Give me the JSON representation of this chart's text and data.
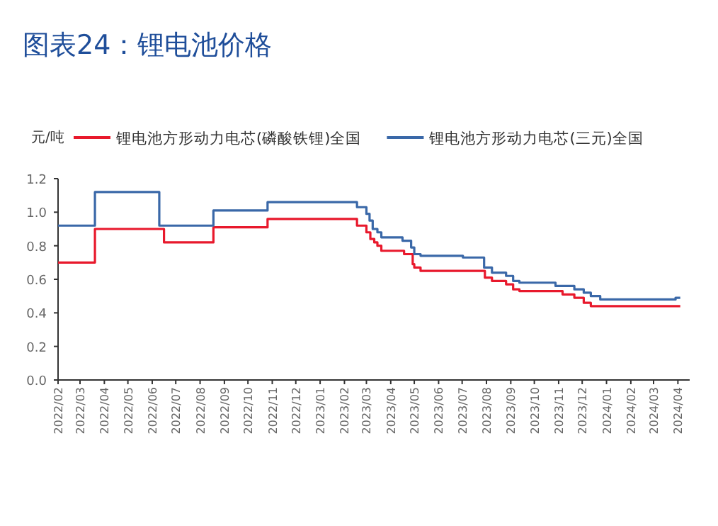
{
  "chart_data": {
    "type": "step",
    "title": "图表24：锂电池价格",
    "ylabel": "元/吨",
    "legend": "top",
    "grid": false,
    "line_style": "solid",
    "marker": "none",
    "xlim": [
      "2022-02-01",
      "2024-04-16"
    ],
    "xticks": [
      {
        "value": "2022-02-01",
        "label": "2022/02"
      },
      {
        "value": "2022-03-01",
        "label": "2022/03"
      },
      {
        "value": "2022-04-01",
        "label": "2022/04"
      },
      {
        "value": "2022-05-01",
        "label": "2022/05"
      },
      {
        "value": "2022-06-01",
        "label": "2022/06"
      },
      {
        "value": "2022-07-01",
        "label": "2022/07"
      },
      {
        "value": "2022-08-01",
        "label": "2022/08"
      },
      {
        "value": "2022-09-01",
        "label": "2022/09"
      },
      {
        "value": "2022-10-01",
        "label": "2022/10"
      },
      {
        "value": "2022-11-01",
        "label": "2022/11"
      },
      {
        "value": "2022-12-01",
        "label": "2022/12"
      },
      {
        "value": "2023-01-01",
        "label": "2023/01"
      },
      {
        "value": "2023-02-01",
        "label": "2023/02"
      },
      {
        "value": "2023-03-01",
        "label": "2023/03"
      },
      {
        "value": "2023-04-01",
        "label": "2023/04"
      },
      {
        "value": "2023-05-01",
        "label": "2023/05"
      },
      {
        "value": "2023-06-01",
        "label": "2023/06"
      },
      {
        "value": "2023-07-01",
        "label": "2023/07"
      },
      {
        "value": "2023-08-01",
        "label": "2023/08"
      },
      {
        "value": "2023-09-01",
        "label": "2023/09"
      },
      {
        "value": "2023-10-01",
        "label": "2023/10"
      },
      {
        "value": "2023-11-01",
        "label": "2023/11"
      },
      {
        "value": "2023-12-01",
        "label": "2023/12"
      },
      {
        "value": "2024-01-01",
        "label": "2024/01"
      },
      {
        "value": "2024-02-01",
        "label": "2024/02"
      },
      {
        "value": "2024-03-01",
        "label": "2024/03"
      },
      {
        "value": "2024-04-01",
        "label": "2024/04"
      }
    ],
    "ylim": [
      0,
      1.2
    ],
    "yticks": [
      {
        "value": 0,
        "label": "0.0"
      },
      {
        "value": 0.2,
        "label": "0.2"
      },
      {
        "value": 0.4,
        "label": "0.4"
      },
      {
        "value": 0.6,
        "label": "0.6"
      },
      {
        "value": 0.8,
        "label": "0.8"
      },
      {
        "value": 1,
        "label": "1.0"
      },
      {
        "value": 1.2,
        "label": "1.2"
      }
    ],
    "series": [
      {
        "name": "锂电池方形动力电芯(磷酸铁锂)全国",
        "color": "#e8192c",
        "x": [
          "2022-02-01",
          "2022-03-20",
          "2022-06-16",
          "2022-08-18",
          "2022-10-26",
          "2023-02-17",
          "2023-03-01",
          "2023-03-06",
          "2023-03-11",
          "2023-03-15",
          "2023-03-20",
          "2023-04-18",
          "2023-04-29",
          "2023-05-01",
          "2023-05-09",
          "2023-07-30",
          "2023-08-08",
          "2023-08-26",
          "2023-09-04",
          "2023-09-12",
          "2023-11-06",
          "2023-11-21",
          "2023-12-03",
          "2023-12-12",
          "2024-04-04"
        ],
        "values": [
          0.7,
          0.9,
          0.82,
          0.91,
          0.96,
          0.92,
          0.88,
          0.84,
          0.82,
          0.8,
          0.77,
          0.75,
          0.69,
          0.67,
          0.65,
          0.61,
          0.59,
          0.57,
          0.54,
          0.53,
          0.51,
          0.49,
          0.46,
          0.44,
          0.44
        ]
      },
      {
        "name": "锂电池方形动力电芯(三元)全国",
        "color": "#3a68a8",
        "x": [
          "2022-02-01",
          "2022-03-20",
          "2022-06-10",
          "2022-08-18",
          "2022-10-26",
          "2023-02-17",
          "2023-03-01",
          "2023-03-05",
          "2023-03-09",
          "2023-03-15",
          "2023-03-20",
          "2023-04-16",
          "2023-04-27",
          "2023-05-01",
          "2023-05-09",
          "2023-07-02",
          "2023-07-29",
          "2023-08-08",
          "2023-08-26",
          "2023-09-04",
          "2023-09-12",
          "2023-10-28",
          "2023-11-21",
          "2023-12-03",
          "2023-12-12",
          "2023-12-24",
          "2024-03-29",
          "2024-04-04"
        ],
        "values": [
          0.92,
          1.12,
          0.92,
          1.01,
          1.06,
          1.03,
          0.99,
          0.95,
          0.9,
          0.88,
          0.85,
          0.83,
          0.79,
          0.75,
          0.74,
          0.73,
          0.67,
          0.64,
          0.62,
          0.59,
          0.58,
          0.56,
          0.54,
          0.52,
          0.5,
          0.48,
          0.49,
          0.49
        ]
      }
    ]
  }
}
